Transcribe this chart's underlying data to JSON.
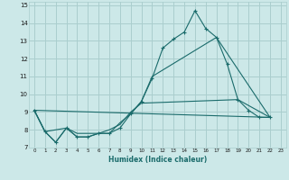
{
  "xlabel": "Humidex (Indice chaleur)",
  "xlim": [
    -0.5,
    23.5
  ],
  "ylim": [
    7,
    15.2
  ],
  "yticks": [
    7,
    8,
    9,
    10,
    11,
    12,
    13,
    14,
    15
  ],
  "xticks": [
    0,
    1,
    2,
    3,
    4,
    5,
    6,
    7,
    8,
    9,
    10,
    11,
    12,
    13,
    14,
    15,
    16,
    17,
    18,
    19,
    20,
    21,
    22,
    23
  ],
  "bg_color": "#cce8e8",
  "grid_color": "#aacece",
  "line_color": "#1a6b6b",
  "line1_x": [
    0,
    1,
    2,
    3,
    4,
    5,
    6,
    7,
    8,
    9,
    10,
    11,
    12,
    13,
    14,
    15,
    16,
    17,
    18,
    19,
    20,
    21,
    22
  ],
  "line1_y": [
    9.1,
    7.9,
    7.3,
    8.1,
    7.6,
    7.6,
    7.8,
    7.8,
    8.1,
    8.9,
    9.6,
    10.9,
    12.6,
    13.1,
    13.5,
    14.7,
    13.7,
    13.2,
    11.7,
    9.7,
    9.1,
    8.7,
    8.7
  ],
  "line2_x": [
    0,
    1,
    2,
    3,
    4,
    5,
    6,
    7,
    8,
    9,
    10,
    11,
    17,
    22
  ],
  "line2_y": [
    9.1,
    7.9,
    7.3,
    8.1,
    7.6,
    7.6,
    7.8,
    7.8,
    8.4,
    8.9,
    9.6,
    11.0,
    13.2,
    8.7
  ],
  "line3_x": [
    0,
    1,
    3,
    4,
    5,
    6,
    7,
    8,
    9,
    10,
    19,
    22
  ],
  "line3_y": [
    9.1,
    7.9,
    8.1,
    7.8,
    7.8,
    7.8,
    8.0,
    8.3,
    9.0,
    9.5,
    9.7,
    8.7
  ],
  "line4_x": [
    0,
    22
  ],
  "line4_y": [
    9.1,
    8.7
  ]
}
